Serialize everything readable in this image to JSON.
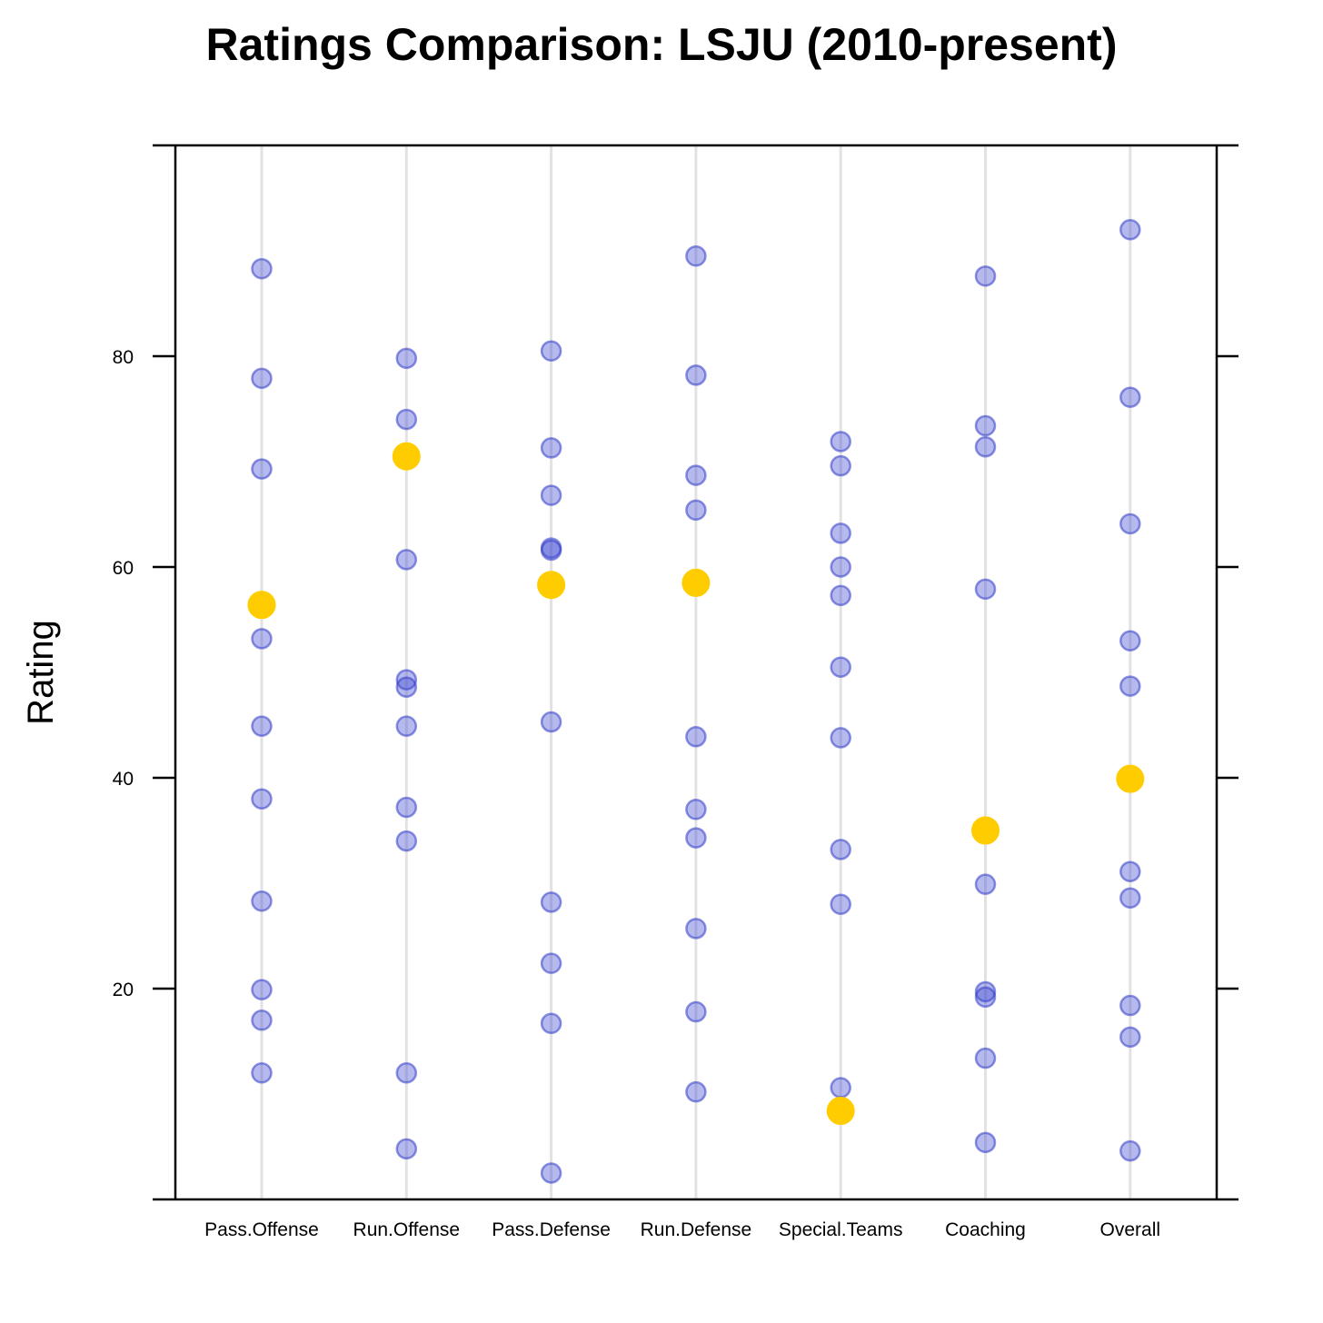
{
  "chart_data": {
    "type": "scatter",
    "title": "Ratings Comparison: LSJU (2010-present)",
    "xlabel": "",
    "ylabel": "Rating",
    "ylim": [
      0,
      100
    ],
    "yticks": [
      20,
      40,
      60,
      80
    ],
    "grid": "vertical",
    "categories": [
      "Pass.Offense",
      "Run.Offense",
      "Pass.Defense",
      "Run.Defense",
      "Special.Teams",
      "Coaching",
      "Overall"
    ],
    "colors": {
      "other": "#3c46d2",
      "team": "#ffcc00"
    },
    "series": [
      {
        "role": "others",
        "values": [
          [
            88.3,
            77.9,
            69.3,
            53.2,
            44.9,
            38.0,
            28.3,
            19.9,
            17.0,
            12.0
          ],
          [
            79.8,
            74.0,
            60.7,
            49.3,
            48.6,
            44.9,
            37.2,
            34.0,
            12.0,
            4.8
          ],
          [
            80.5,
            71.3,
            66.8,
            61.8,
            61.6,
            45.3,
            28.2,
            22.4,
            16.7,
            2.5
          ],
          [
            89.5,
            78.2,
            68.7,
            65.4,
            43.9,
            37.0,
            34.3,
            25.7,
            17.8,
            10.2
          ],
          [
            71.9,
            69.6,
            63.2,
            60.0,
            57.3,
            50.5,
            43.8,
            33.2,
            28.0,
            10.6
          ],
          [
            87.6,
            73.4,
            71.4,
            57.9,
            29.9,
            19.7,
            19.2,
            13.4,
            5.4
          ],
          [
            92.0,
            76.1,
            64.1,
            53.0,
            48.7,
            31.1,
            28.6,
            18.4,
            15.4,
            4.6
          ]
        ]
      },
      {
        "role": "team",
        "values": [
          56.4,
          70.5,
          58.3,
          58.5,
          8.4,
          35.0,
          39.9
        ]
      }
    ]
  }
}
